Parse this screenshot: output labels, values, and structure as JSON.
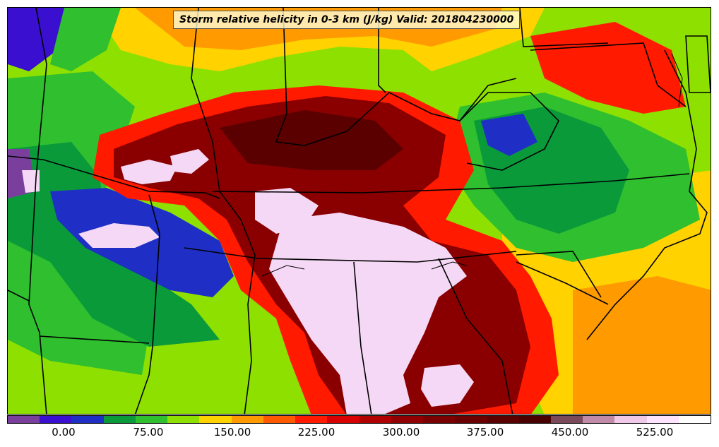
{
  "title": "Storm relative helicity in 0-3 km (J/kg) Valid: 201804230000",
  "colorbar": {
    "colors": [
      "#7a3f9c",
      "#3a0fd0",
      "#1f2fc6",
      "#0a9a3a",
      "#2fbf2f",
      "#8ee000",
      "#ffd200",
      "#ff9a00",
      "#ff5a00",
      "#ff1a00",
      "#d80000",
      "#b00000",
      "#900000",
      "#7a0000",
      "#6a0000",
      "#5a0000",
      "#4a0000",
      "#7a4a5a",
      "#c08aa8",
      "#f0c8e8",
      "#ffe4ff",
      "#ffffff"
    ],
    "tick_labels": [
      "0.00",
      "75.00",
      "150.00",
      "225.00",
      "300.00",
      "375.00",
      "450.00",
      "525.00"
    ]
  },
  "map": {
    "background": "#8ee000",
    "region_colors": {
      "low": "#1f2fc6",
      "lowmid": "#0a9a3a",
      "mid": "#2fbf2f",
      "midhigh": "#ffd200",
      "high": "#ff1a00",
      "veryhigh": "#8a0000",
      "extreme": "#f5d8f5"
    }
  }
}
